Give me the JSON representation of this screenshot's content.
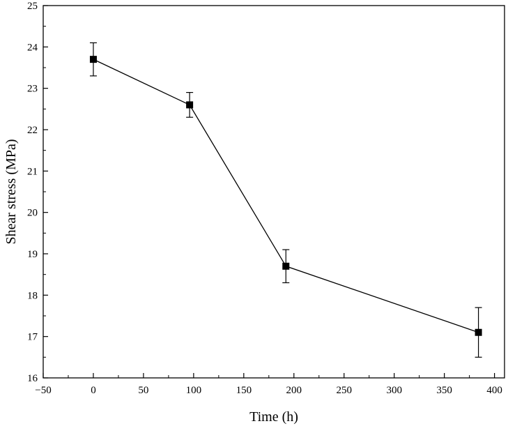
{
  "chart_data": {
    "type": "line",
    "title": "",
    "xlabel": "Time (h)",
    "ylabel": "Shear stress (MPa)",
    "xlim": [
      -50,
      410
    ],
    "ylim": [
      16,
      25
    ],
    "x_ticks": [
      -50,
      0,
      50,
      100,
      150,
      200,
      250,
      300,
      350,
      400
    ],
    "x_tick_labels": [
      "−50",
      "0",
      "50",
      "100",
      "150",
      "200",
      "250",
      "300",
      "350",
      "400"
    ],
    "y_ticks": [
      16,
      17,
      18,
      19,
      20,
      21,
      22,
      23,
      24,
      25
    ],
    "y_tick_labels": [
      "16",
      "17",
      "18",
      "19",
      "20",
      "21",
      "22",
      "23",
      "24",
      "25"
    ],
    "grid": false,
    "legend": "none",
    "series": [
      {
        "x": [
          0,
          96,
          192,
          384
        ],
        "y": [
          23.7,
          22.6,
          18.7,
          17.1
        ],
        "err_low": [
          0.4,
          0.3,
          0.4,
          0.6
        ],
        "err_high": [
          0.4,
          0.3,
          0.4,
          0.6
        ],
        "marker": "square",
        "color": "#000000"
      }
    ]
  }
}
